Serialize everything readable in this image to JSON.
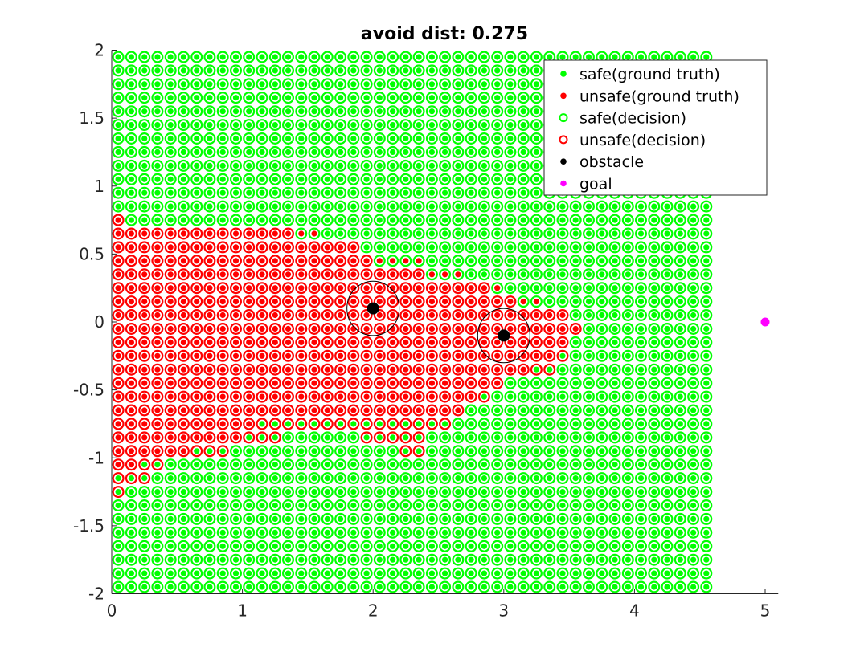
{
  "chart_data": {
    "type": "scatter",
    "title": "avoid dist: 0.275",
    "xlim": [
      0,
      5.1
    ],
    "ylim": [
      -2,
      2
    ],
    "xticks": [
      0,
      1,
      2,
      3,
      4,
      5
    ],
    "yticks": [
      2,
      1.5,
      1,
      0.5,
      0,
      -0.5,
      -1,
      -1.5,
      -2
    ],
    "xtick_labels": [
      "0",
      "1",
      "2",
      "3",
      "4",
      "5"
    ],
    "ytick_labels": [
      "2",
      "1.5",
      "1",
      "0.5",
      "0",
      "-0.5",
      "-1",
      "-1.5",
      "-2"
    ],
    "grid": false,
    "legend_position": "top-right",
    "grid_points": {
      "x_start": 0.05,
      "x_end": 4.55,
      "x_step": 0.1,
      "y_start": -1.95,
      "y_end": 1.95,
      "y_step": 0.1
    },
    "obstacles": [
      {
        "x": 2,
        "y": 0.1
      },
      {
        "x": 3,
        "y": -0.1
      }
    ],
    "obstacle_radius": 0.2,
    "goal": {
      "x": 5,
      "y": 0
    },
    "unsafe_decision_rows": [
      {
        "y": 0.75,
        "ranges": [
          [
            0.05,
            0.05
          ]
        ]
      },
      {
        "y": 0.65,
        "ranges": [
          [
            0.05,
            1.35
          ]
        ]
      },
      {
        "y": 0.55,
        "ranges": [
          [
            0.05,
            1.85
          ]
        ]
      },
      {
        "y": 0.45,
        "ranges": [
          [
            0.05,
            1.95
          ]
        ]
      },
      {
        "y": 0.35,
        "ranges": [
          [
            0.05,
            2.35
          ]
        ]
      },
      {
        "y": 0.25,
        "ranges": [
          [
            0.05,
            2.85
          ]
        ]
      },
      {
        "y": 0.15,
        "ranges": [
          [
            0.05,
            3.05
          ]
        ]
      },
      {
        "y": 0.05,
        "ranges": [
          [
            0.05,
            3.45
          ]
        ]
      },
      {
        "y": -0.05,
        "ranges": [
          [
            0.05,
            3.55
          ]
        ]
      },
      {
        "y": -0.15,
        "ranges": [
          [
            0.05,
            3.45
          ]
        ]
      },
      {
        "y": -0.25,
        "ranges": [
          [
            0.05,
            3.45
          ]
        ]
      },
      {
        "y": -0.35,
        "ranges": [
          [
            0.05,
            3.35
          ]
        ]
      },
      {
        "y": -0.45,
        "ranges": [
          [
            0.05,
            2.95
          ]
        ]
      },
      {
        "y": -0.55,
        "ranges": [
          [
            0.05,
            2.85
          ]
        ]
      },
      {
        "y": -0.65,
        "ranges": [
          [
            0.05,
            2.65
          ]
        ]
      },
      {
        "y": -0.75,
        "ranges": [
          [
            0.05,
            2.55
          ]
        ]
      },
      {
        "y": -0.85,
        "ranges": [
          [
            0.05,
            1.25
          ],
          [
            1.95,
            2.35
          ]
        ]
      },
      {
        "y": -0.95,
        "ranges": [
          [
            0.05,
            0.85
          ],
          [
            2.25,
            2.35
          ]
        ]
      },
      {
        "y": -1.05,
        "ranges": [
          [
            0.05,
            0.35
          ]
        ]
      },
      {
        "y": -1.15,
        "ranges": [
          [
            0.05,
            0.25
          ]
        ]
      },
      {
        "y": -1.25,
        "ranges": [
          [
            0.05,
            0.05
          ]
        ]
      }
    ],
    "unsafe_truth_rows": [
      {
        "y": 0.75,
        "ranges": [
          [
            0.05,
            0.05
          ]
        ]
      },
      {
        "y": 0.65,
        "ranges": [
          [
            0.05,
            1.55
          ]
        ]
      },
      {
        "y": 0.55,
        "ranges": [
          [
            0.05,
            1.85
          ]
        ]
      },
      {
        "y": 0.45,
        "ranges": [
          [
            0.05,
            2.35
          ]
        ]
      },
      {
        "y": 0.35,
        "ranges": [
          [
            0.05,
            2.65
          ]
        ]
      },
      {
        "y": 0.25,
        "ranges": [
          [
            0.05,
            2.95
          ]
        ]
      },
      {
        "y": 0.15,
        "ranges": [
          [
            0.05,
            3.25
          ]
        ]
      },
      {
        "y": 0.05,
        "ranges": [
          [
            0.05,
            3.45
          ]
        ]
      },
      {
        "y": -0.05,
        "ranges": [
          [
            0.05,
            3.55
          ]
        ]
      },
      {
        "y": -0.15,
        "ranges": [
          [
            0.05,
            3.45
          ]
        ]
      },
      {
        "y": -0.25,
        "ranges": [
          [
            0.05,
            3.35
          ]
        ]
      },
      {
        "y": -0.35,
        "ranges": [
          [
            0.05,
            3.15
          ]
        ]
      },
      {
        "y": -0.45,
        "ranges": [
          [
            0.05,
            2.95
          ]
        ]
      },
      {
        "y": -0.55,
        "ranges": [
          [
            0.05,
            2.75
          ]
        ]
      },
      {
        "y": -0.65,
        "ranges": [
          [
            0.05,
            2.65
          ]
        ]
      },
      {
        "y": -0.75,
        "ranges": [
          [
            0.05,
            1.05
          ]
        ]
      },
      {
        "y": -0.85,
        "ranges": [
          [
            0.05,
            0.95
          ]
        ]
      },
      {
        "y": -0.95,
        "ranges": [
          [
            0.05,
            0.55
          ]
        ]
      },
      {
        "y": -1.05,
        "ranges": [
          [
            0.05,
            0.15
          ]
        ]
      }
    ],
    "legend": [
      {
        "label": "safe(ground truth)",
        "marker": "dot",
        "color": "#00ff00"
      },
      {
        "label": "unsafe(ground truth)",
        "marker": "dot",
        "color": "#ff0000"
      },
      {
        "label": "safe(decision)",
        "marker": "ring",
        "color": "#00ff00"
      },
      {
        "label": "unsafe(decision)",
        "marker": "ring",
        "color": "#ff0000"
      },
      {
        "label": "obstacle",
        "marker": "dot",
        "color": "#000000"
      },
      {
        "label": "goal",
        "marker": "dot",
        "color": "#ff00ff"
      }
    ],
    "colors": {
      "safe": "#00ff00",
      "unsafe": "#ff0000",
      "obstacle": "#000000",
      "goal": "#ff00ff",
      "axis": "#262626"
    }
  }
}
